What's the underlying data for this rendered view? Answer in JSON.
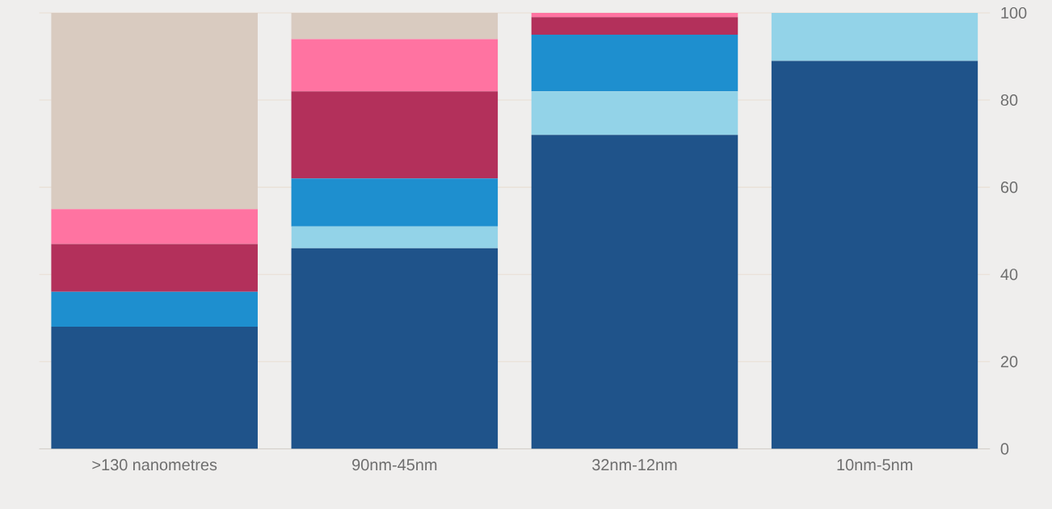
{
  "chart_data": {
    "type": "bar",
    "stacked": true,
    "categories": [
      ">130 nanometres",
      "90nm-45nm",
      "32nm-12nm",
      "10nm-5nm"
    ],
    "series": [
      {
        "color": "#1f538a",
        "values": [
          28,
          46,
          72,
          89
        ]
      },
      {
        "color": "#93d3e8",
        "values": [
          0,
          5,
          10,
          11
        ]
      },
      {
        "color": "#1e8fcf",
        "values": [
          8,
          11,
          13,
          0
        ]
      },
      {
        "color": "#b3305b",
        "values": [
          11,
          20,
          4,
          0
        ]
      },
      {
        "color": "#ff73a1",
        "values": [
          8,
          12,
          1,
          0
        ]
      },
      {
        "color": "#d9cbc0",
        "values": [
          45,
          6,
          0,
          0
        ]
      }
    ],
    "ylim": [
      0,
      100
    ],
    "yticks": [
      0,
      20,
      40,
      60,
      80,
      100
    ],
    "grid": "y"
  }
}
